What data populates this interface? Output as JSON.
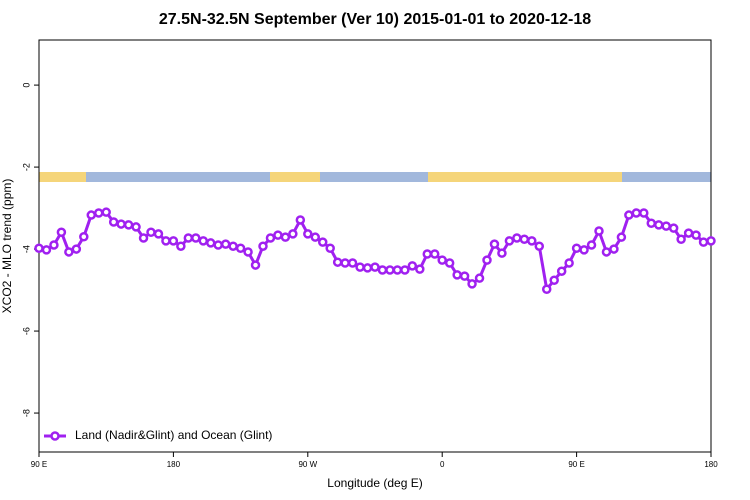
{
  "chart_data": {
    "type": "line",
    "title": "27.5N-32.5N September (Ver 10)   2015-01-01 to 2020-12-18",
    "x_label": "Longitude (deg E)",
    "y_label": "XCO2 - MLO trend (ppm)",
    "x": [
      90,
      95,
      100,
      105,
      110,
      115,
      120,
      125,
      130,
      135,
      140,
      145,
      150,
      155,
      160,
      165,
      170,
      175,
      180,
      185,
      190,
      195,
      200,
      205,
      210,
      215,
      220,
      225,
      230,
      235,
      240,
      245,
      250,
      255,
      260,
      265,
      270,
      275,
      280,
      285,
      290,
      295,
      300,
      305,
      310,
      315,
      320,
      325,
      330,
      335,
      340,
      345,
      350,
      355,
      360,
      365,
      370,
      375,
      380,
      385,
      390,
      395,
      400,
      405,
      410,
      415,
      420,
      425,
      430,
      435,
      440,
      445,
      450,
      455,
      460,
      465,
      470,
      475,
      480,
      485,
      490,
      495,
      500,
      505,
      510,
      515,
      520,
      525,
      530,
      535,
      540
    ],
    "series": [
      {
        "name": "Land (Nadir&Glint) and Ocean (Glint)",
        "color": "#a020f0",
        "values": [
          -3.98,
          -4.02,
          -3.9,
          -3.59,
          -4.07,
          -4.0,
          -3.7,
          -3.17,
          -3.12,
          -3.1,
          -3.34,
          -3.39,
          -3.41,
          -3.46,
          -3.73,
          -3.59,
          -3.63,
          -3.8,
          -3.8,
          -3.93,
          -3.73,
          -3.73,
          -3.8,
          -3.85,
          -3.9,
          -3.88,
          -3.93,
          -3.98,
          -4.07,
          -4.39,
          -3.93,
          -3.73,
          -3.66,
          -3.71,
          -3.63,
          -3.29,
          -3.63,
          -3.71,
          -3.83,
          -3.98,
          -4.32,
          -4.34,
          -4.34,
          -4.44,
          -4.46,
          -4.44,
          -4.51,
          -4.51,
          -4.51,
          -4.51,
          -4.41,
          -4.49,
          -4.12,
          -4.12,
          -4.27,
          -4.34,
          -4.63,
          -4.66,
          -4.85,
          -4.71,
          -4.27,
          -3.88,
          -4.1,
          -3.8,
          -3.73,
          -3.76,
          -3.8,
          -3.93,
          -4.98,
          -4.76,
          -4.54,
          -4.34,
          -3.98,
          -4.02,
          -3.9,
          -3.56,
          -4.07,
          -4.0,
          -3.71,
          -3.17,
          -3.12,
          -3.12,
          -3.37,
          -3.41,
          -3.44,
          -3.49,
          -3.76,
          -3.61,
          -3.66,
          -3.83,
          -3.8
        ]
      }
    ],
    "xlim": [
      90,
      540
    ],
    "xticks": [
      {
        "value": 90,
        "label": "90 E"
      },
      {
        "value": 180,
        "label": "180"
      },
      {
        "value": 270,
        "label": "90 W"
      },
      {
        "value": 360,
        "label": "0"
      },
      {
        "value": 450,
        "label": "90 E"
      },
      {
        "value": 540,
        "label": "180"
      }
    ],
    "ylim": [
      -8.95,
      1.1
    ],
    "yticks": [
      0,
      -2,
      -4,
      -6,
      -8
    ],
    "legend": "bottom-left"
  }
}
